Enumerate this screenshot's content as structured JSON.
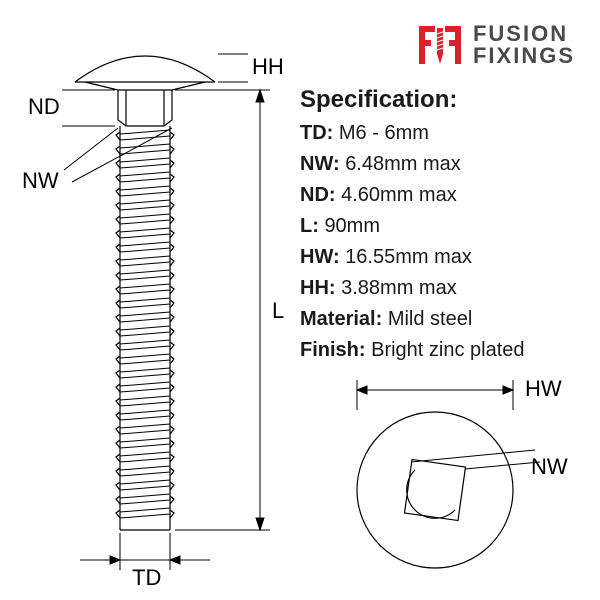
{
  "logo": {
    "line1": "FUSION",
    "line2": "FIXINGS",
    "accent_color": "#d8232a",
    "text_color": "#4a4a4a"
  },
  "spec": {
    "title": "Specification:",
    "rows": [
      {
        "label": "TD:",
        "value": "M6 - 6mm"
      },
      {
        "label": "NW:",
        "value": "6.48mm max"
      },
      {
        "label": "ND:",
        "value": "4.60mm max"
      },
      {
        "label": "L:",
        "value": "90mm"
      },
      {
        "label": "HW:",
        "value": "16.55mm max"
      },
      {
        "label": "HH:",
        "value": "3.88mm max"
      },
      {
        "label": "Material:",
        "value": "Mild steel"
      },
      {
        "label": "Finish:",
        "value": "Bright zinc plated"
      }
    ],
    "fontsize_title": 24,
    "fontsize_row": 20,
    "text_color": "#1a1a1a"
  },
  "diagram": {
    "stroke_color": "#000000",
    "stroke_width": 1.2,
    "background": "#ffffff",
    "labels": {
      "HH": "HH",
      "ND": "ND",
      "NW": "NW",
      "L": "L",
      "TD": "TD",
      "HW": "HW"
    },
    "bolt_side": {
      "head_width": 140,
      "head_height": 28,
      "neck_width": 52,
      "neck_height": 32,
      "shank_width": 50,
      "shank_length": 380,
      "thread_pitch": 14,
      "thread_count": 26
    },
    "bolt_top": {
      "circle_radius": 78,
      "square_size": 54
    }
  }
}
